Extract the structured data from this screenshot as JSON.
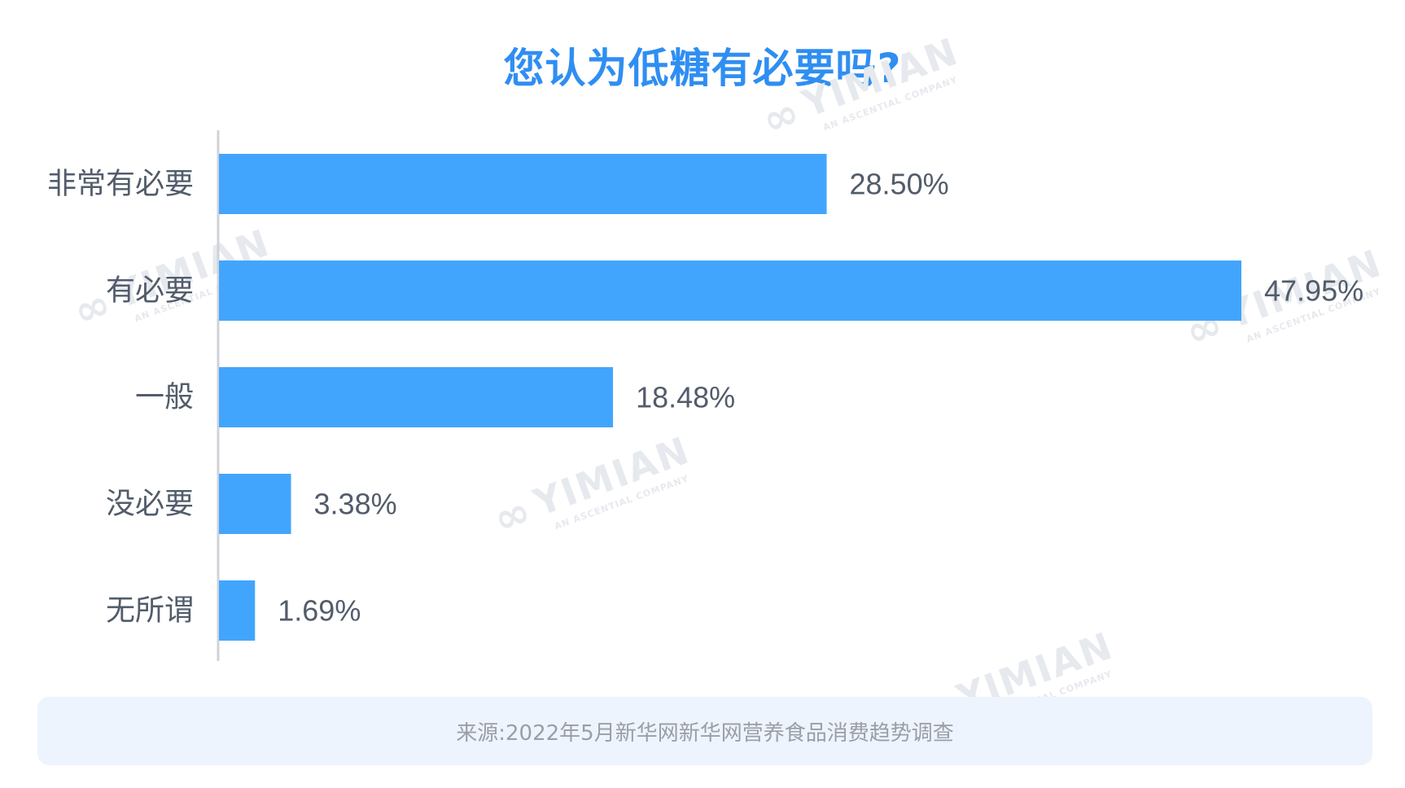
{
  "title": "您认为低糖有必要吗?",
  "watermark": {
    "brand": "YIMIAN",
    "tagline": "AN ASCENTIAL COMPANY"
  },
  "colors": {
    "bar": "#42a5fd",
    "title": "#2f8ef2",
    "label": "#525c6b",
    "axis": "#cfd3d8",
    "footer_bg": "#eef4fd",
    "footer_text": "#9a9ea6"
  },
  "chart_data": {
    "type": "bar",
    "orientation": "horizontal",
    "title": "您认为低糖有必要吗?",
    "categories": [
      "非常有必要",
      "有必要",
      "一般",
      "没必要",
      "无所谓"
    ],
    "values": [
      28.5,
      47.95,
      18.48,
      3.38,
      1.69
    ],
    "value_labels": [
      "28.50%",
      "47.95%",
      "18.48%",
      "3.38%",
      "1.69%"
    ],
    "unit": "%",
    "xlabel": "",
    "ylabel": "",
    "xlim": [
      0,
      47.95
    ],
    "grid": false,
    "legend": "none"
  },
  "footer": {
    "source": "来源:2022年5月新华网新华网营养食品消费趋势调查"
  }
}
